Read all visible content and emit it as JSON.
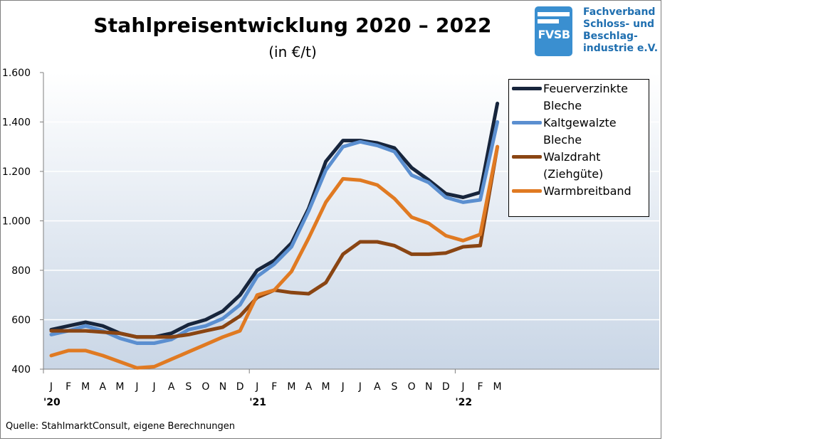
{
  "header": {
    "title": "Stahlpreisentwicklung  2020 – 2022",
    "subtitle": "(in €/t)"
  },
  "logo": {
    "badge_text": "FVSB",
    "org_lines": [
      "Fachverband",
      "Schloss- und",
      "Beschlag-",
      "industrie e.V."
    ],
    "color": "#3a8fd0"
  },
  "legend": {
    "items": [
      {
        "label_line1": "Feuerverzinkte",
        "label_line2": "Bleche",
        "color": "#17253c"
      },
      {
        "label_line1": "Kaltgewalzte",
        "label_line2": "Bleche",
        "color": "#5b8fd0"
      },
      {
        "label_line1": "Walzdraht",
        "label_line2": "(Ziehgüte)",
        "color": "#8a4513"
      },
      {
        "label_line1": "Warmbreitband",
        "label_line2": "",
        "color": "#e07a22"
      }
    ]
  },
  "source": "Quelle: StahlmarktConsult, eigene Berechnungen",
  "chart_data": {
    "type": "line",
    "title": "Stahlpreisentwicklung  2020 – 2022",
    "subtitle": "(in €/t)",
    "x": [
      "J",
      "F",
      "M",
      "A",
      "M",
      "J",
      "J",
      "A",
      "S",
      "O",
      "N",
      "D",
      "J",
      "F",
      "M",
      "A",
      "M",
      "J",
      "J",
      "A",
      "S",
      "O",
      "N",
      "D",
      "J",
      "F",
      "M"
    ],
    "year_labels": [
      {
        "index": 0,
        "label": "'20"
      },
      {
        "index": 12,
        "label": "'21"
      },
      {
        "index": 24,
        "label": "'22"
      }
    ],
    "ylim": [
      400,
      1600
    ],
    "yticks": [
      400,
      600,
      800,
      1000,
      1200,
      1400,
      1600
    ],
    "ytick_labels": [
      "400",
      "600",
      "800",
      "1.000",
      "1.200",
      "1.400",
      "1.600"
    ],
    "grid": true,
    "legend_position": "top-right",
    "series": [
      {
        "name": "Feuerverzinkte Bleche",
        "color": "#17253c",
        "values": [
          560,
          575,
          590,
          575,
          545,
          530,
          530,
          545,
          580,
          600,
          635,
          700,
          800,
          840,
          910,
          1050,
          1240,
          1325,
          1325,
          1315,
          1295,
          1215,
          1165,
          1110,
          1095,
          1115,
          1475
        ]
      },
      {
        "name": "Kaltgewalzte Bleche",
        "color": "#5b8fd0",
        "values": [
          540,
          555,
          575,
          555,
          525,
          505,
          505,
          520,
          560,
          575,
          605,
          660,
          775,
          825,
          895,
          1040,
          1205,
          1300,
          1320,
          1305,
          1280,
          1185,
          1155,
          1095,
          1075,
          1085,
          1400
        ]
      },
      {
        "name": "Walzdraht (Ziehgüte)",
        "color": "#8a4513",
        "values": [
          555,
          555,
          555,
          550,
          545,
          530,
          530,
          530,
          540,
          555,
          570,
          615,
          690,
          720,
          710,
          705,
          750,
          865,
          915,
          915,
          900,
          865,
          865,
          870,
          895,
          900,
          1300
        ]
      },
      {
        "name": "Warmbreitband",
        "color": "#e07a22",
        "values": [
          455,
          475,
          475,
          455,
          430,
          405,
          410,
          440,
          470,
          500,
          530,
          555,
          700,
          720,
          795,
          930,
          1075,
          1170,
          1165,
          1145,
          1090,
          1015,
          990,
          940,
          920,
          945,
          1300
        ]
      }
    ]
  }
}
